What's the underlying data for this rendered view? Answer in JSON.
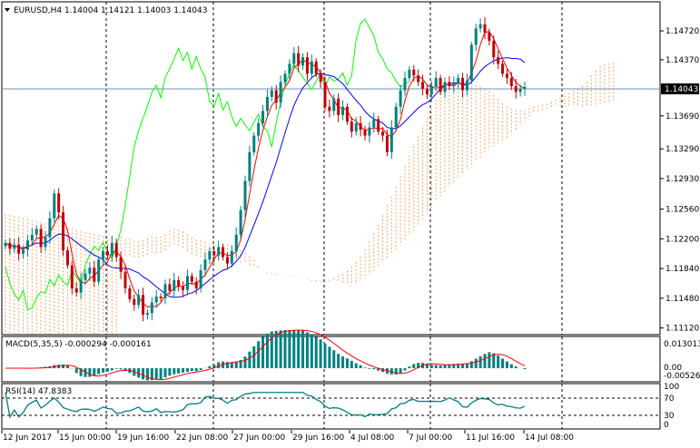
{
  "main": {
    "title": "EURUSD,H4  1.14004 1.14121 1.14003 1.14043",
    "price_ticks": [
      "1.14720",
      "1.14370",
      "1.13690",
      "1.13290",
      "1.12930",
      "1.12560",
      "1.12200",
      "1.11840",
      "1.11480",
      "1.11120"
    ],
    "current_price": "1.14043"
  },
  "macd": {
    "title": "MACD(5,35,5) -0.000294 -0.000161",
    "ticks": [
      "0.013013",
      "0.00",
      "-0.005265"
    ]
  },
  "rsi": {
    "title": "RSI(14) 47.8383",
    "ticks": [
      "100",
      "70",
      "30",
      "0"
    ]
  },
  "time_axis": [
    "12 Jun 2017",
    "15 Jun 00:00",
    "19 Jun 16:00",
    "22 Jun 08:00",
    "27 Jun 00:00",
    "29 Jun 16:00",
    "4 Jul 08:00",
    "7 Jul 00:00",
    "11 Jul 16:00",
    "14 Jul 08:00"
  ],
  "colors": {
    "bull": "#008080",
    "bear": "#c00000",
    "tenkan": "#ff0000",
    "kijun": "#0000ff",
    "chikou": "#00ff00",
    "cloud_a": "#f4a460",
    "cloud_b": "#d8bfd8",
    "macd_line": "#ff0000",
    "macd_hist": "#008080",
    "rsi_line": "#008080"
  },
  "chart_data": {
    "type": "candlestick",
    "symbol": "EURUSD",
    "timeframe": "H4",
    "ohlc_last": {
      "open": 1.14004,
      "high": 1.14121,
      "low": 1.14003,
      "close": 1.14043
    },
    "ylim": [
      1.1105,
      1.1505
    ],
    "close": [
      1.1215,
      1.1208,
      1.1213,
      1.1202,
      1.1207,
      1.1218,
      1.1225,
      1.1232,
      1.121,
      1.1222,
      1.1245,
      1.1275,
      1.1252,
      1.1206,
      1.1188,
      1.116,
      1.1155,
      1.117,
      1.1178,
      1.1185,
      1.1168,
      1.1195,
      1.1205,
      1.12,
      1.1215,
      1.1198,
      1.118,
      1.116,
      1.1147,
      1.114,
      1.1152,
      1.1128,
      1.113,
      1.1143,
      1.115,
      1.1148,
      1.1165,
      1.1157,
      1.117,
      1.1162,
      1.1158,
      1.1175,
      1.1168,
      1.116,
      1.1182,
      1.1195,
      1.1205,
      1.12,
      1.121,
      1.1198,
      1.119,
      1.1205,
      1.1225,
      1.1255,
      1.129,
      1.1325,
      1.1345,
      1.136,
      1.1375,
      1.1392,
      1.14,
      1.1385,
      1.141,
      1.142,
      1.1432,
      1.1445,
      1.143,
      1.144,
      1.142,
      1.1435,
      1.142,
      1.141,
      1.138,
      1.1375,
      1.139,
      1.137,
      1.138,
      1.1362,
      1.135,
      1.136,
      1.1352,
      1.1345,
      1.1355,
      1.1365,
      1.135,
      1.1345,
      1.1325,
      1.1355,
      1.138,
      1.14,
      1.1415,
      1.1425,
      1.1418,
      1.141,
      1.1402,
      1.1395,
      1.1405,
      1.1415,
      1.1398,
      1.141,
      1.1405,
      1.1408,
      1.1415,
      1.14,
      1.1412,
      1.1455,
      1.1475,
      1.148,
      1.147,
      1.146,
      1.144,
      1.1432,
      1.142,
      1.1415,
      1.1405,
      1.1398,
      1.1402,
      1.1404
    ],
    "macd": {
      "range": [
        -0.005265,
        0.013013
      ]
    },
    "rsi": {
      "period": 14,
      "last": 47.8383,
      "levels": [
        70,
        30
      ],
      "range": [
        0,
        100
      ]
    }
  }
}
